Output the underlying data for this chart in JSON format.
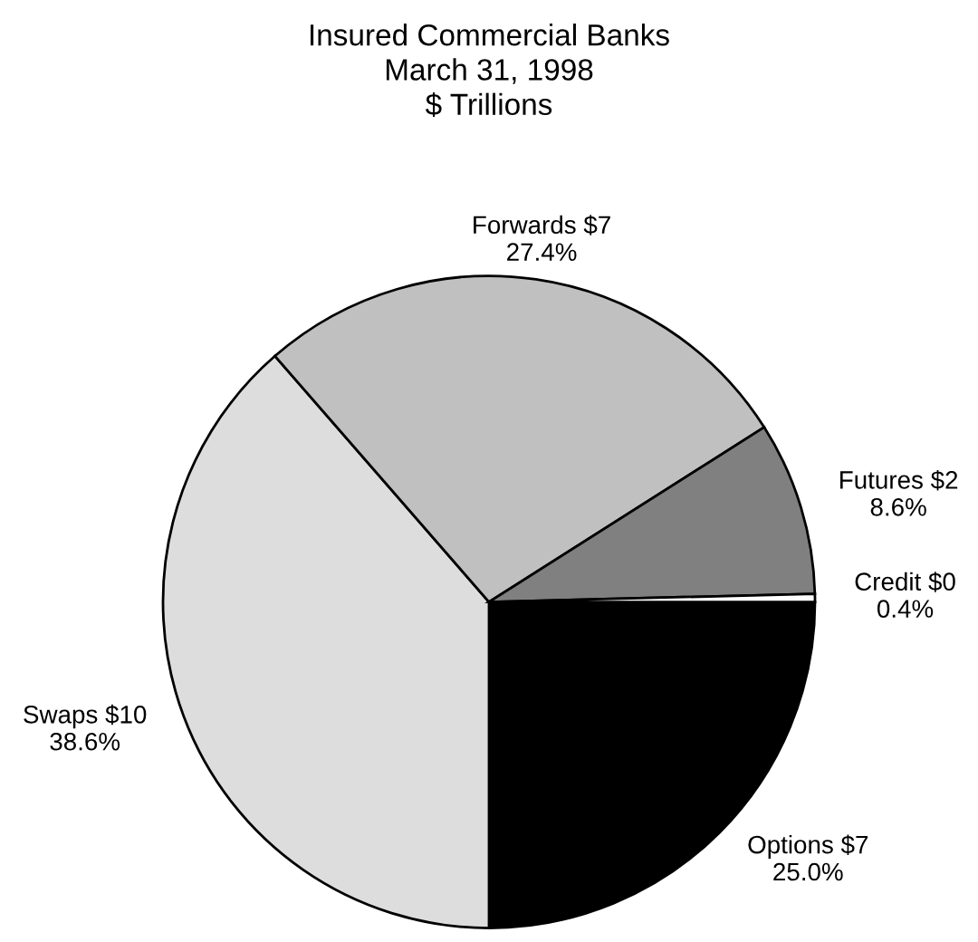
{
  "chart_data": {
    "type": "pie",
    "subtitle": "Insured Commercial Banks\nMarch 31, 1998\n$ Trillions",
    "categories": [
      "Options $7",
      "Swaps $10",
      "Forwards $7",
      "Futures $2",
      "Credit $0"
    ],
    "values": [
      25.0,
      38.6,
      27.4,
      8.6,
      0.4
    ],
    "value_labels": [
      "25.0%",
      "38.6%",
      "27.4%",
      "8.6%",
      "0.4%"
    ],
    "colors": [
      "#000000",
      "#dddddd",
      "#c0c0c0",
      "#808080",
      "#ffffff"
    ],
    "legend": false
  }
}
